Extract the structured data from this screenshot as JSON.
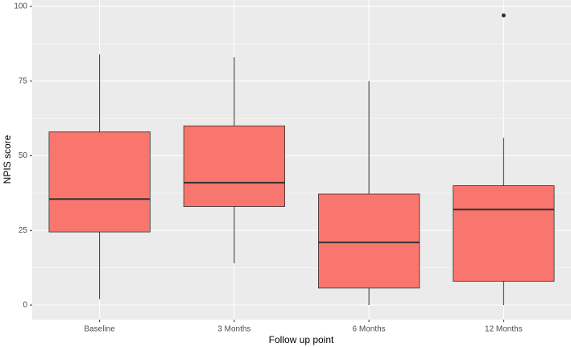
{
  "chart_data": {
    "type": "boxplot",
    "x_label": "Follow up point",
    "y_label": "NPIS score",
    "categories": [
      "Baseline",
      "3 Months",
      "6 Months",
      "12 Months"
    ],
    "color": "#f8766d",
    "boxes": [
      {
        "min": 2,
        "q1": 24.5,
        "median": 35.5,
        "q3": 58,
        "max": 84,
        "outliers": []
      },
      {
        "min": 14,
        "q1": 33,
        "median": 41,
        "q3": 60,
        "max": 83,
        "outliers": []
      },
      {
        "min": 0,
        "q1": 5.7,
        "median": 21,
        "q3": 37.2,
        "max": 75,
        "outliers": []
      },
      {
        "min": 0,
        "q1": 8,
        "median": 32,
        "q3": 40,
        "max": 56,
        "outliers": [
          97
        ]
      }
    ],
    "ylim": [
      -4.85,
      102.15
    ],
    "yticks": [
      0,
      25,
      50,
      75,
      100
    ],
    "minor_yticks": [
      12.5,
      37.5,
      62.5,
      87.5
    ],
    "grid": true
  }
}
